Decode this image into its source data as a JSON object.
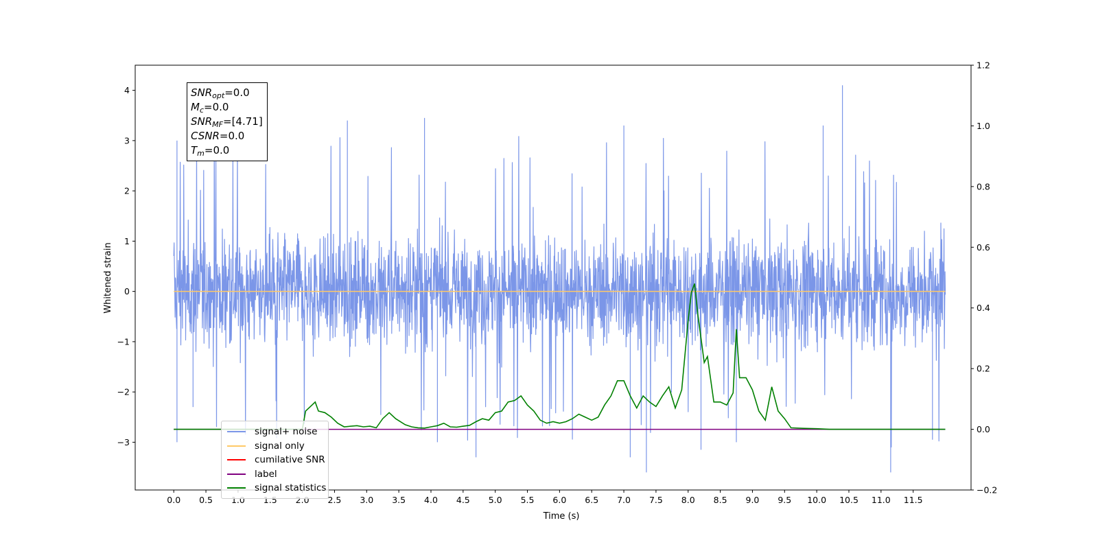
{
  "stats": {
    "snr_opt": {
      "symbol": "SNR",
      "sub": "opt",
      "value": "=0.0"
    },
    "m_c": {
      "symbol": "M",
      "sub": "c",
      "value": "=0.0"
    },
    "snr_mf": {
      "symbol": "SNR",
      "sub": "MF",
      "value": "=[4.71]"
    },
    "csnr": {
      "symbol": "CSNR",
      "value": "=0.0"
    },
    "t_m": {
      "symbol": "T",
      "sub": "m",
      "value": "=0.0"
    }
  },
  "legend": [
    {
      "label": "signal+ noise",
      "color": "#7b96e8"
    },
    {
      "label": "signal only",
      "color": "#ffc966"
    },
    {
      "label": "cumilative SNR",
      "color": "#ff0000"
    },
    {
      "label": "label",
      "color": "#800080"
    },
    {
      "label": "signal statistics",
      "color": "#008000"
    }
  ],
  "chart_data": {
    "type": "line",
    "xlabel": "Time (s)",
    "ylabel": "Whitened strain",
    "xlim": [
      -0.6,
      12.4
    ],
    "ylim": [
      -3.95,
      4.5
    ],
    "y2lim": [
      -0.2,
      1.2
    ],
    "x_ticks": [
      0.0,
      0.5,
      1.0,
      1.5,
      2.0,
      2.5,
      3.0,
      3.5,
      4.0,
      4.5,
      5.0,
      5.5,
      6.0,
      6.5,
      7.0,
      7.5,
      8.0,
      8.5,
      9.0,
      9.5,
      10.0,
      10.5,
      11.0,
      11.5
    ],
    "y_ticks": [
      -3,
      -2,
      -1,
      0,
      1,
      2,
      3,
      4
    ],
    "y2_ticks": [
      -0.2,
      0.0,
      0.2,
      0.4,
      0.6,
      0.8,
      1.0,
      1.2
    ],
    "series": [
      {
        "name": "signal+ noise",
        "color": "#7b96e8",
        "axis": "left",
        "x_range": [
          0.0,
          12.0
        ],
        "envelope": {
          "upper_typical": 1.4,
          "lower_typical": -1.5,
          "max": 4.1,
          "min": -3.6
        },
        "notable_spikes": [
          [
            0.05,
            3.0
          ],
          [
            0.05,
            -3.0
          ],
          [
            2.7,
            3.4
          ],
          [
            3.9,
            3.45
          ],
          [
            7.0,
            3.3
          ],
          [
            10.4,
            4.1
          ],
          [
            10.1,
            3.3
          ],
          [
            0.3,
            -2.3
          ],
          [
            4.7,
            -3.3
          ],
          [
            4.1,
            -3.0
          ],
          [
            7.1,
            -3.3
          ],
          [
            7.35,
            -3.6
          ],
          [
            8.2,
            -3.15
          ],
          [
            8.75,
            -3.0
          ],
          [
            11.15,
            -3.6
          ],
          [
            11.8,
            -2.95
          ]
        ]
      },
      {
        "name": "signal only",
        "color": "#ffc966",
        "axis": "left",
        "x": [
          0.0,
          12.0
        ],
        "y": [
          0.0,
          0.0
        ]
      },
      {
        "name": "label",
        "color": "#800080",
        "axis": "right",
        "x": [
          0.0,
          12.0
        ],
        "y": [
          0.0,
          0.0
        ]
      },
      {
        "name": "signal statistics",
        "color": "#008000",
        "axis": "right",
        "x": [
          0.0,
          2.0,
          2.05,
          2.15,
          2.2,
          2.25,
          2.35,
          2.45,
          2.55,
          2.65,
          2.75,
          2.85,
          2.95,
          3.05,
          3.15,
          3.25,
          3.35,
          3.45,
          3.6,
          3.7,
          3.8,
          3.9,
          4.0,
          4.1,
          4.2,
          4.3,
          4.4,
          4.5,
          4.6,
          4.7,
          4.8,
          4.9,
          5.0,
          5.1,
          5.2,
          5.3,
          5.4,
          5.5,
          5.6,
          5.7,
          5.8,
          5.9,
          6.0,
          6.1,
          6.2,
          6.3,
          6.4,
          6.5,
          6.6,
          6.7,
          6.8,
          6.9,
          7.0,
          7.1,
          7.2,
          7.3,
          7.4,
          7.5,
          7.6,
          7.7,
          7.8,
          7.9,
          8.0,
          8.05,
          8.1,
          8.15,
          8.2,
          8.25,
          8.3,
          8.4,
          8.5,
          8.6,
          8.7,
          8.75,
          8.8,
          8.9,
          9.0,
          9.1,
          9.2,
          9.3,
          9.4,
          9.5,
          9.6,
          9.8,
          10.0,
          10.2,
          12.0
        ],
        "y": [
          0.0,
          0.0,
          0.06,
          0.08,
          0.09,
          0.06,
          0.055,
          0.04,
          0.02,
          0.008,
          0.01,
          0.012,
          0.008,
          0.01,
          0.005,
          0.035,
          0.055,
          0.035,
          0.015,
          0.008,
          0.005,
          0.004,
          0.008,
          0.012,
          0.02,
          0.008,
          0.007,
          0.01,
          0.013,
          0.025,
          0.035,
          0.03,
          0.055,
          0.06,
          0.09,
          0.095,
          0.11,
          0.08,
          0.06,
          0.03,
          0.02,
          0.025,
          0.02,
          0.025,
          0.035,
          0.05,
          0.04,
          0.03,
          0.04,
          0.08,
          0.11,
          0.16,
          0.16,
          0.11,
          0.07,
          0.11,
          0.09,
          0.075,
          0.11,
          0.14,
          0.07,
          0.13,
          0.36,
          0.45,
          0.48,
          0.38,
          0.3,
          0.22,
          0.24,
          0.09,
          0.09,
          0.08,
          0.12,
          0.33,
          0.17,
          0.17,
          0.13,
          0.06,
          0.03,
          0.14,
          0.06,
          0.035,
          0.005,
          0.003,
          0.002,
          0.0,
          0.0
        ]
      }
    ]
  }
}
